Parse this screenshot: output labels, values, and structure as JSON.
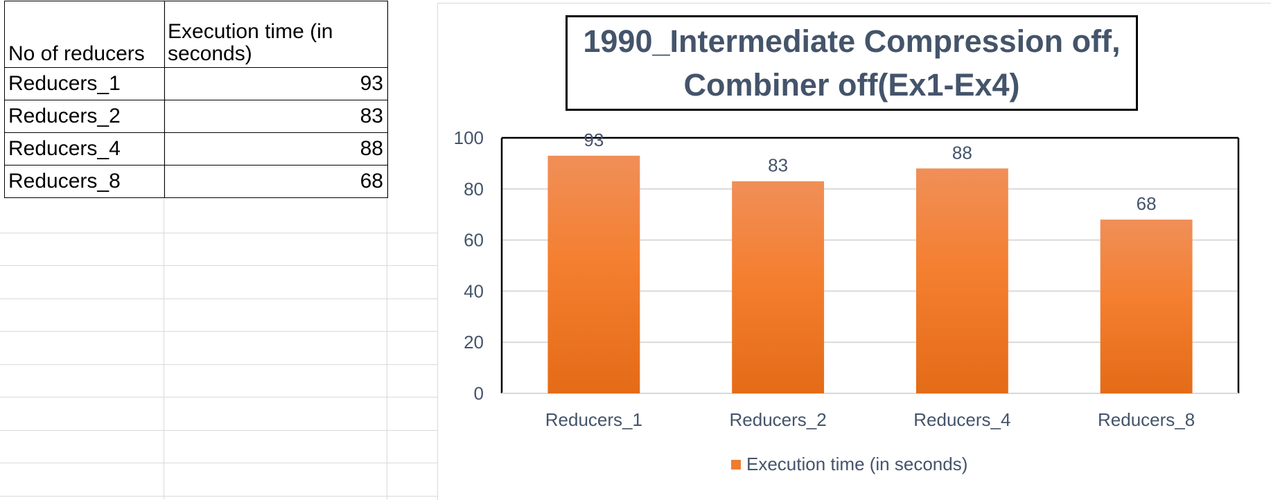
{
  "table": {
    "headers": [
      "No of reducers",
      "Execution time (in seconds)"
    ],
    "rows": [
      {
        "name": "Reducers_1",
        "value": "93"
      },
      {
        "name": "Reducers_2",
        "value": "83"
      },
      {
        "name": "Reducers_4",
        "value": "88"
      },
      {
        "name": "Reducers_8",
        "value": "68"
      }
    ]
  },
  "chart_data": {
    "type": "bar",
    "title": "1990_Intermediate Compression off, Combiner off(Ex1-Ex4)",
    "categories": [
      "Reducers_1",
      "Reducers_2",
      "Reducers_4",
      "Reducers_8"
    ],
    "series": [
      {
        "name": "Execution time (in seconds)",
        "values": [
          93,
          83,
          88,
          68
        ],
        "color": "#ed7d31"
      }
    ],
    "ylim": [
      0,
      100
    ],
    "yticks": [
      0,
      20,
      40,
      60,
      80,
      100
    ],
    "xlabel": "",
    "ylabel": "",
    "grid": true,
    "legend_position": "bottom",
    "data_labels": true
  }
}
